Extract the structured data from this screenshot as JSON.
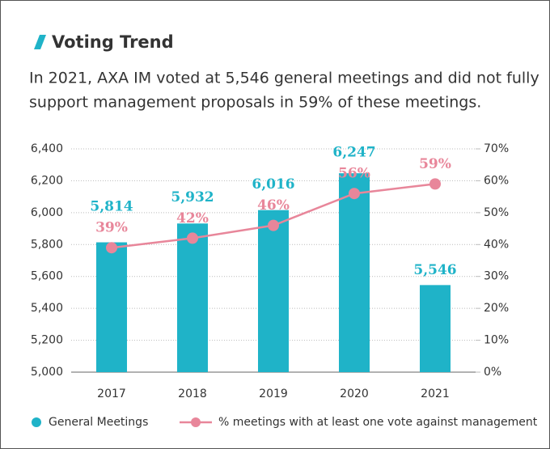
{
  "chart_data": {
    "type": "bar-line",
    "title": "Voting Trend",
    "subtitle": [
      "In 2021, AXA IM voted at 5,546 general meetings and did not fully",
      "support management proposals in 59% of these meetings."
    ],
    "categories": [
      "2017",
      "2018",
      "2019",
      "2020",
      "2021"
    ],
    "series": [
      {
        "name": "General Meetings",
        "type": "bar",
        "color": "#1fb3c8",
        "values": [
          5814,
          5932,
          6016,
          6247,
          5546
        ],
        "value_labels": [
          "5,814",
          "5,932",
          "6,016",
          "6,247",
          "5,546"
        ]
      },
      {
        "name": "% meetings with at least one vote against management",
        "type": "line",
        "axis": "y2",
        "color": "#e8869a",
        "values": [
          39,
          42,
          46,
          56,
          59
        ],
        "value_labels": [
          "39%",
          "42%",
          "46%",
          "56%",
          "59%"
        ]
      }
    ],
    "ylim": [
      5000,
      6400
    ],
    "yticks": [
      {
        "value": 5000,
        "label": "5,000"
      },
      {
        "value": 5200,
        "label": "5,200"
      },
      {
        "value": 5400,
        "label": "5,400"
      },
      {
        "value": 5600,
        "label": "5,600"
      },
      {
        "value": 5800,
        "label": "5,800"
      },
      {
        "value": 6000,
        "label": "6,000"
      },
      {
        "value": 6200,
        "label": "6,200"
      },
      {
        "value": 6400,
        "label": "6,400"
      }
    ],
    "y2lim": [
      0,
      70
    ],
    "y2ticks": [
      {
        "value": 0,
        "label": "0%"
      },
      {
        "value": 10,
        "label": "10%"
      },
      {
        "value": 20,
        "label": "20%"
      },
      {
        "value": 30,
        "label": "30%"
      },
      {
        "value": 40,
        "label": "40%"
      },
      {
        "value": 50,
        "label": "50%"
      },
      {
        "value": 60,
        "label": "60%"
      },
      {
        "value": 70,
        "label": "70%"
      }
    ],
    "grid": true,
    "legend": "bottom"
  }
}
